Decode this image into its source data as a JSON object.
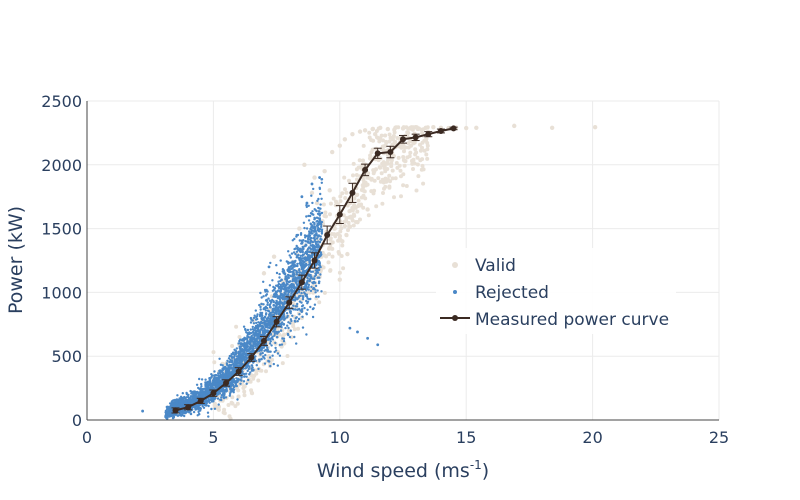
{
  "chart_data": {
    "type": "scatter",
    "xlabel": "Wind speed (ms",
    "xlabel_sup": "-1",
    "xlabel_end": ")",
    "ylabel": "Power (kW)",
    "xlim": [
      0,
      25
    ],
    "ylim": [
      0,
      2500
    ],
    "x_ticks": [
      0,
      5,
      10,
      15,
      20,
      25
    ],
    "y_ticks": [
      0,
      500,
      1000,
      1500,
      2000,
      2500
    ],
    "grid": true,
    "legend_position": "right-center",
    "colors": {
      "valid": "#e8e0d6",
      "rejected": "#4a88c7",
      "curve": "#3b2a22",
      "grid": "#ebebeb",
      "text": "#2a3f5f"
    },
    "series": [
      {
        "name": "Valid",
        "kind": "markers",
        "color": "#e8e0d6",
        "points": [
          [
            8.6,
            2000
          ],
          [
            9.0,
            1900
          ],
          [
            9.4,
            1950
          ],
          [
            9.7,
            2100
          ],
          [
            10.0,
            2150
          ],
          [
            10.2,
            2200
          ],
          [
            10.5,
            2240
          ],
          [
            10.8,
            2260
          ],
          [
            11.0,
            2270
          ],
          [
            11.3,
            2280
          ],
          [
            11.6,
            2290
          ],
          [
            11.9,
            2280
          ],
          [
            12.2,
            2290
          ],
          [
            12.5,
            2285
          ],
          [
            12.8,
            2290
          ],
          [
            13.1,
            2285
          ],
          [
            13.4,
            2290
          ],
          [
            13.7,
            2295
          ],
          [
            14.0,
            2290
          ],
          [
            14.3,
            2288
          ],
          [
            14.6,
            2292
          ],
          [
            15.0,
            2288
          ],
          [
            15.4,
            2290
          ],
          [
            16.9,
            2305
          ],
          [
            18.4,
            2290
          ],
          [
            20.1,
            2295
          ],
          [
            9.1,
            1700
          ],
          [
            9.4,
            1600
          ],
          [
            9.8,
            1500
          ],
          [
            10.1,
            1400
          ],
          [
            10.3,
            1300
          ],
          [
            10.0,
            1100
          ],
          [
            9.9,
            1600
          ],
          [
            10.4,
            1700
          ],
          [
            10.6,
            1850
          ],
          [
            11.0,
            1950
          ],
          [
            11.2,
            2050
          ],
          [
            11.5,
            2100
          ],
          [
            11.8,
            2150
          ],
          [
            8.2,
            900
          ],
          [
            8.5,
            800
          ],
          [
            8.8,
            1000
          ],
          [
            9.3,
            1200
          ],
          [
            7.5,
            700
          ],
          [
            7.8,
            600
          ],
          [
            8.0,
            700
          ],
          [
            7.2,
            500
          ],
          [
            6.8,
            400
          ],
          [
            6.5,
            350
          ],
          [
            9.6,
            1800
          ],
          [
            10.9,
            2000
          ],
          [
            12.1,
            2200
          ],
          [
            12.7,
            2250
          ],
          [
            13.3,
            2230
          ],
          [
            11.4,
            2240
          ],
          [
            10.7,
            1550
          ],
          [
            10.2,
            1520
          ],
          [
            9.6,
            1350
          ],
          [
            11.1,
            1650
          ],
          [
            8.4,
            1500
          ],
          [
            8.3,
            1300
          ],
          [
            7.0,
            1150
          ],
          [
            7.4,
            1280
          ],
          [
            8.9,
            1780
          ]
        ]
      },
      {
        "name": "Rejected",
        "kind": "markers",
        "color": "#4a88c7",
        "points": [
          [
            2.2,
            70
          ],
          [
            10.4,
            720
          ],
          [
            10.7,
            690
          ],
          [
            11.1,
            640
          ],
          [
            11.5,
            590
          ],
          [
            8.7,
            1700
          ],
          [
            8.5,
            1750
          ],
          [
            8.9,
            1850
          ],
          [
            9.2,
            1900
          ],
          [
            7.2,
            1200
          ],
          [
            6.2,
            520
          ],
          [
            5.4,
            400
          ]
        ]
      },
      {
        "name": "Measured power curve",
        "kind": "lines+markers",
        "color": "#3b2a22",
        "x": [
          3.5,
          4.0,
          4.5,
          5.0,
          5.5,
          6.0,
          6.5,
          7.0,
          7.5,
          8.0,
          8.5,
          9.0,
          9.5,
          10.0,
          10.5,
          11.0,
          11.5,
          12.0,
          12.5,
          13.0,
          13.5,
          14.0,
          14.5
        ],
        "y": [
          75,
          100,
          150,
          210,
          290,
          380,
          490,
          620,
          770,
          920,
          1080,
          1250,
          1450,
          1610,
          1780,
          1960,
          2090,
          2100,
          2200,
          2215,
          2240,
          2265,
          2285
        ],
        "error": [
          20,
          20,
          20,
          25,
          25,
          30,
          30,
          35,
          40,
          45,
          55,
          60,
          70,
          70,
          75,
          45,
          40,
          45,
          30,
          25,
          20,
          15,
          10
        ]
      }
    ]
  }
}
